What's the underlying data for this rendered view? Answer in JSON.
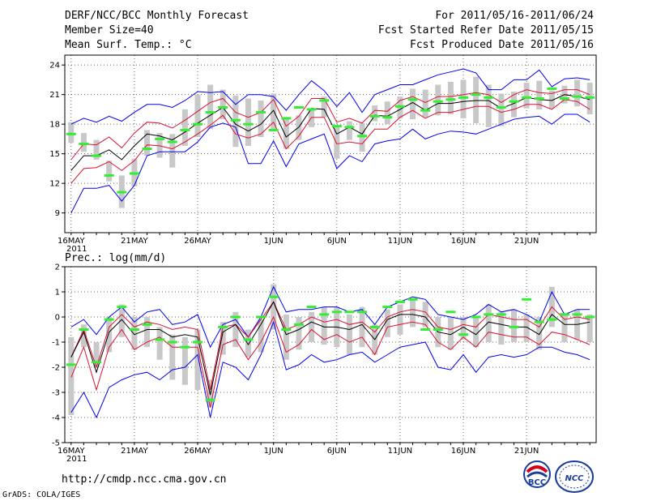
{
  "header": {
    "title": "DERF/NCC/BCC Monthly Forecast",
    "member_size": "Member Size=40",
    "variable": "Mean Surf. Temp.: °C",
    "period": "For 2011/05/16-2011/06/24",
    "started": "Fcst Started Refer Date 2011/05/15",
    "produced": "Fcst Produced Date 2011/05/16"
  },
  "footer": {
    "url": "http://cmdp.ncc.cma.gov.cn",
    "grads": "GrADS: COLA/IGES",
    "logo_bcc": "BCC",
    "logo_ncc": "NCC"
  },
  "colors": {
    "box": "#c8c8c8",
    "obs": "#33ee33",
    "mean": "#000000",
    "inner": "#dd1133",
    "outer": "#0000ee",
    "grid": "#666666"
  },
  "chart_data": [
    {
      "type": "line",
      "title": "Mean Surf. Temp.: °C",
      "x_labels": [
        "16MAY",
        "21MAY",
        "26MAY",
        "1JUN",
        "6JUN",
        "11JUN",
        "16JUN",
        "21JUN"
      ],
      "x_year_label": "2011",
      "ylim": [
        7,
        25
      ],
      "yticks": [
        9,
        12,
        15,
        18,
        21,
        24
      ],
      "grid": true,
      "series": [
        {
          "name": "max",
          "values": [
            9.0,
            11.5,
            11.5,
            11.8,
            10.2,
            11.8,
            14.8,
            15.2,
            15.2,
            15.2,
            16.2,
            17.7,
            18.1,
            17.7,
            14.0,
            14.0,
            16.3,
            13.7,
            16.0,
            16.5,
            17.0,
            13.5,
            14.8,
            14.2,
            16.0,
            16.3,
            16.5,
            17.5,
            16.5,
            17.0,
            17.3,
            17.2,
            17.0,
            17.5,
            18.0,
            18.5,
            18.7,
            18.8,
            18.0,
            19.0,
            19.0,
            18.2
          ]
        },
        {
          "name": "p_low",
          "values": [
            12.0,
            13.5,
            13.6,
            14.2,
            13.3,
            14.3,
            15.9,
            15.8,
            15.5,
            16.2,
            17.0,
            17.9,
            18.9,
            17.0,
            16.6,
            17.0,
            18.2,
            15.5,
            16.8,
            18.7,
            18.7,
            16.0,
            16.2,
            16.0,
            17.5,
            17.5,
            18.7,
            19.4,
            18.6,
            19.2,
            19.2,
            19.5,
            19.8,
            19.8,
            19.2,
            19.5,
            20.0,
            20.0,
            19.5,
            20.5,
            20.3,
            19.5
          ]
        },
        {
          "name": "mean",
          "values": [
            13.3,
            14.8,
            14.8,
            15.4,
            14.4,
            15.8,
            17.0,
            16.8,
            16.4,
            17.2,
            18.1,
            18.9,
            19.7,
            18.0,
            17.3,
            18.0,
            19.4,
            16.7,
            17.7,
            19.6,
            19.5,
            17.0,
            17.7,
            17.0,
            18.9,
            18.8,
            19.5,
            20.2,
            19.4,
            20.1,
            20.1,
            20.3,
            20.4,
            20.4,
            19.6,
            20.1,
            20.7,
            20.5,
            20.4,
            21.0,
            20.8,
            20.5
          ]
        },
        {
          "name": "p_high",
          "values": [
            14.4,
            16.0,
            15.9,
            16.7,
            15.6,
            17.1,
            18.2,
            18.1,
            17.6,
            18.4,
            19.3,
            20.2,
            20.6,
            19.2,
            18.7,
            19.2,
            20.5,
            17.8,
            18.8,
            20.6,
            20.6,
            18.2,
            18.6,
            18.1,
            19.4,
            19.3,
            20.4,
            20.8,
            20.2,
            20.8,
            20.8,
            21.0,
            21.2,
            21.0,
            20.2,
            21.0,
            21.5,
            21.2,
            21.1,
            21.5,
            21.5,
            21.0
          ]
        },
        {
          "name": "min",
          "values": [
            18.0,
            18.6,
            18.2,
            18.8,
            18.3,
            19.2,
            20.0,
            20.0,
            19.7,
            20.4,
            21.3,
            21.2,
            21.3,
            20.0,
            21.0,
            21.0,
            20.8,
            19.4,
            21.0,
            22.4,
            21.4,
            19.8,
            21.2,
            19.2,
            21.0,
            21.5,
            22.0,
            22.0,
            22.5,
            23.0,
            23.3,
            23.6,
            23.2,
            21.5,
            21.5,
            22.5,
            22.5,
            23.5,
            21.8,
            22.6,
            22.7,
            22.5
          ]
        },
        {
          "name": "box_low",
          "values": [
            16.1,
            15.2,
            14.4,
            12.2,
            9.5,
            11.7,
            14.8,
            14.6,
            13.6,
            15.8,
            16.7,
            17.5,
            18.5,
            15.7,
            15.8,
            16.7,
            17.5,
            15.5,
            16.4,
            17.7,
            18.7,
            14.5,
            16.4,
            15.2,
            18.3,
            18.0,
            18.6,
            18.5,
            18.7,
            18.9,
            19.0,
            18.6,
            18.1,
            17.7,
            17.8,
            18.7,
            19.6,
            19.5,
            19.6,
            20.1,
            19.8,
            19.0
          ]
        },
        {
          "name": "box_high",
          "values": [
            18.2,
            17.1,
            16.4,
            14.3,
            12.8,
            14.5,
            17.4,
            17.1,
            17.0,
            19.5,
            21.0,
            22.0,
            21.5,
            20.9,
            20.6,
            20.4,
            21.1,
            18.6,
            18.9,
            19.6,
            20.8,
            17.7,
            18.3,
            18.1,
            19.9,
            20.3,
            20.8,
            21.6,
            21.5,
            22.0,
            22.3,
            22.5,
            22.8,
            22.0,
            21.1,
            21.3,
            22.2,
            22.4,
            21.4,
            21.9,
            22.5,
            22.2
          ]
        },
        {
          "name": "observed",
          "values": [
            17.0,
            16.0,
            14.8,
            12.8,
            11.1,
            13.0,
            15.5,
            16.5,
            16.2,
            17.4,
            18.0,
            19.2,
            19.7,
            18.4,
            18.0,
            19.2,
            17.4,
            18.6,
            19.7,
            19.5,
            20.4,
            17.8,
            17.7,
            16.8,
            18.8,
            18.7,
            19.8,
            20.5,
            19.4,
            20.3,
            20.5,
            20.7,
            21.0,
            20.7,
            19.7,
            20.3,
            20.7,
            20.6,
            21.6,
            20.6,
            20.8,
            20.7
          ]
        }
      ]
    },
    {
      "type": "line",
      "title": "Prec.: log(mm/d)",
      "x_labels": [
        "16MAY",
        "21MAY",
        "26MAY",
        "1JUN",
        "6JUN",
        "11JUN",
        "16JUN",
        "21JUN"
      ],
      "x_year_label": "2011",
      "ylim": [
        -5,
        2
      ],
      "yticks": [
        -5,
        -4,
        -3,
        -2,
        -1,
        0,
        1,
        2
      ],
      "grid": true,
      "series": [
        {
          "name": "max",
          "values": [
            -0.4,
            -0.1,
            -0.7,
            0.0,
            0.4,
            -0.2,
            0.2,
            0.3,
            -0.3,
            -0.2,
            0.1,
            -1.2,
            -0.3,
            -0.1,
            -0.8,
            0.0,
            1.2,
            0.2,
            0.3,
            0.3,
            0.4,
            0.4,
            0.2,
            0.3,
            -0.3,
            0.4,
            0.6,
            0.8,
            0.7,
            0.1,
            0.0,
            -0.1,
            0.1,
            0.5,
            0.2,
            0.3,
            0.1,
            -0.2,
            1.0,
            0.1,
            0.3,
            0.3
          ]
        },
        {
          "name": "p_low",
          "values": [
            -2.4,
            -1.2,
            -2.9,
            -1.2,
            -0.5,
            -1.3,
            -1.0,
            -0.8,
            -1.2,
            -1.2,
            -1.2,
            -3.6,
            -1.1,
            -0.9,
            -1.7,
            -1.0,
            0.0,
            -1.4,
            -1.1,
            -0.5,
            -0.9,
            -0.7,
            -1.0,
            -0.8,
            -1.5,
            -0.4,
            -0.3,
            -0.2,
            -0.3,
            -1.0,
            -1.3,
            -0.8,
            -1.2,
            -0.6,
            -0.7,
            -0.8,
            -0.8,
            -1.1,
            -0.6,
            -0.7,
            -0.9,
            -1.1
          ]
        },
        {
          "name": "mean",
          "values": [
            -1.6,
            -0.6,
            -2.2,
            -0.6,
            -0.1,
            -0.7,
            -0.5,
            -0.5,
            -0.8,
            -0.7,
            -0.8,
            -3.1,
            -0.6,
            -0.3,
            -1.1,
            -0.3,
            0.6,
            -0.7,
            -0.5,
            -0.2,
            -0.4,
            -0.4,
            -0.5,
            -0.3,
            -0.9,
            -0.1,
            0.1,
            0.1,
            0.0,
            -0.6,
            -0.7,
            -0.4,
            -0.7,
            -0.2,
            -0.3,
            -0.4,
            -0.4,
            -0.7,
            0.1,
            -0.3,
            -0.3,
            -0.2
          ]
        },
        {
          "name": "p_high",
          "values": [
            -1.6,
            -0.5,
            -2.0,
            -0.4,
            0.1,
            -0.4,
            -0.2,
            -0.3,
            -0.5,
            -0.4,
            -0.5,
            -2.9,
            -0.4,
            -0.3,
            -0.8,
            -0.1,
            0.6,
            -0.5,
            -0.3,
            0.0,
            -0.2,
            -0.1,
            -0.3,
            -0.2,
            -0.6,
            0.0,
            0.2,
            0.3,
            0.2,
            -0.4,
            -0.5,
            -0.3,
            -0.4,
            0.1,
            0.0,
            -0.1,
            -0.1,
            -0.4,
            0.4,
            -0.1,
            0.0,
            -0.1
          ]
        },
        {
          "name": "min",
          "values": [
            -3.8,
            -3.0,
            -4.0,
            -2.8,
            -2.5,
            -2.3,
            -2.2,
            -2.5,
            -2.1,
            -2.0,
            -1.5,
            -4.0,
            -1.8,
            -2.0,
            -2.5,
            -1.5,
            -0.2,
            -2.1,
            -1.9,
            -1.5,
            -1.8,
            -1.7,
            -1.5,
            -1.4,
            -1.8,
            -1.5,
            -1.2,
            -1.1,
            -1.0,
            -2.0,
            -2.1,
            -1.5,
            -2.2,
            -1.6,
            -1.5,
            -1.6,
            -1.5,
            -1.2,
            -1.2,
            -1.4,
            -1.5,
            -1.7
          ]
        },
        {
          "name": "box_low",
          "values": [
            -3.9,
            -1.2,
            -2.0,
            -1.4,
            -0.8,
            -1.3,
            -1.2,
            -1.7,
            -2.5,
            -2.7,
            -2.9,
            -3.6,
            -1.5,
            -1.2,
            -1.6,
            -1.4,
            -0.5,
            -1.7,
            -1.3,
            -1.0,
            -1.1,
            -1.2,
            -1.5,
            -1.2,
            -1.5,
            -0.8,
            -0.7,
            -0.4,
            -0.4,
            -1.2,
            -1.3,
            -0.9,
            -1.2,
            -1.0,
            -1.1,
            -1.0,
            -1.0,
            -1.3,
            -0.4,
            -1.0,
            -0.9,
            -1.0
          ]
        },
        {
          "name": "box_high",
          "values": [
            -0.8,
            -0.3,
            -1.0,
            0.0,
            0.5,
            0.0,
            0.0,
            -0.4,
            -0.7,
            -0.8,
            -0.5,
            -2.5,
            -0.2,
            0.2,
            -0.5,
            -0.1,
            1.3,
            0.1,
            0.0,
            0.2,
            0.4,
            0.4,
            0.1,
            0.4,
            -0.3,
            0.3,
            0.5,
            0.7,
            0.6,
            0.0,
            0.0,
            0.0,
            0.0,
            0.5,
            0.2,
            0.3,
            0.1,
            0.0,
            1.2,
            0.1,
            0.3,
            0.1
          ]
        },
        {
          "name": "observed",
          "values": [
            -1.9,
            -0.5,
            -1.8,
            -0.1,
            0.4,
            -0.5,
            -0.3,
            -0.9,
            -1.0,
            -1.2,
            -1.0,
            -3.3,
            -0.4,
            0.0,
            -0.9,
            0.0,
            0.8,
            -0.5,
            -0.3,
            0.4,
            0.1,
            0.2,
            0.2,
            0.2,
            -0.4,
            0.4,
            0.6,
            0.7,
            -0.5,
            -0.5,
            0.2,
            -0.7,
            0.0,
            0.1,
            0.1,
            -0.4,
            0.7,
            -0.2,
            -0.1,
            0.1,
            0.1,
            0.0
          ]
        }
      ]
    }
  ]
}
